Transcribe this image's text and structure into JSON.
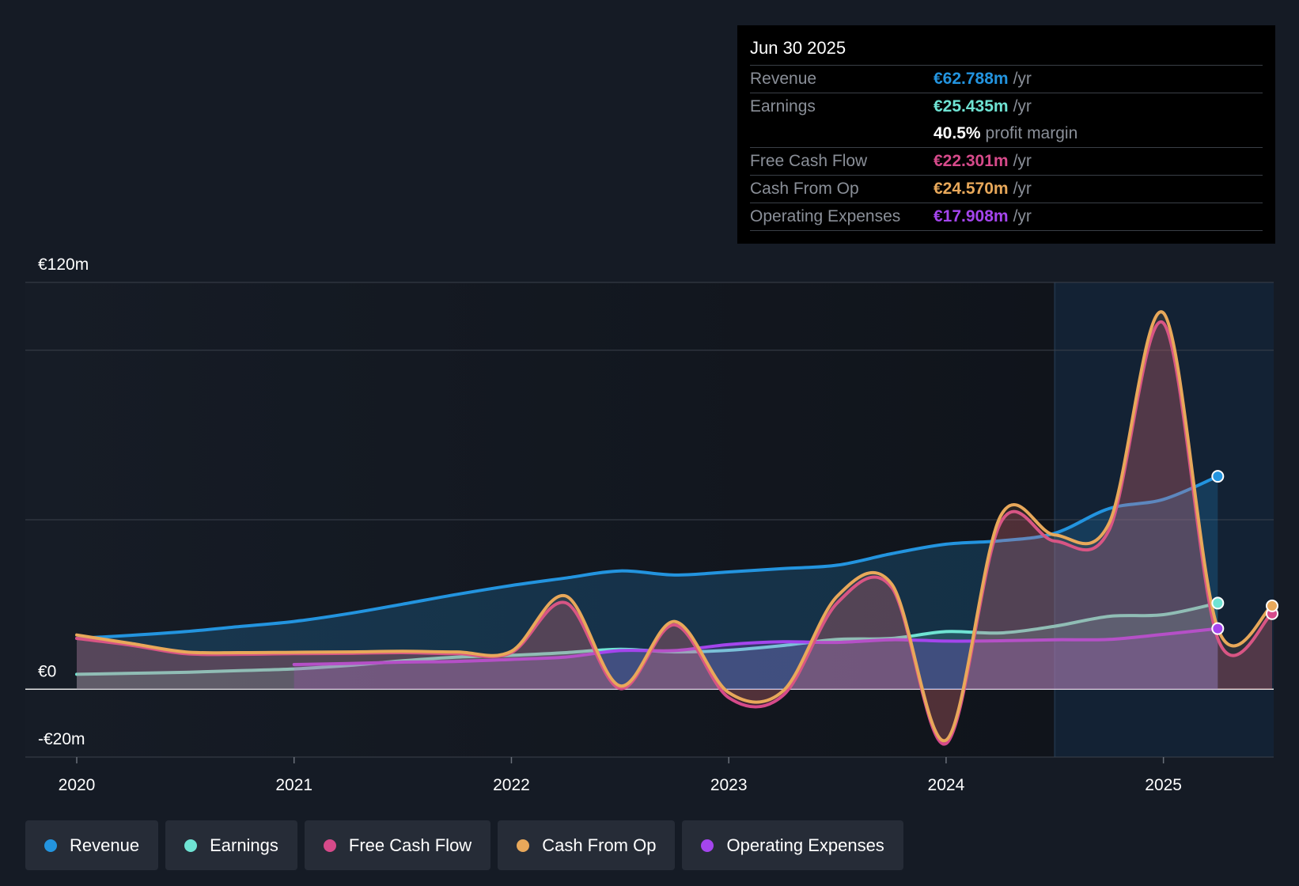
{
  "tooltip": {
    "date": "Jun 30 2025",
    "rows": [
      {
        "label": "Revenue",
        "value": "€62.788m",
        "unit": "/yr",
        "color": "#2394df"
      },
      {
        "label": "Earnings",
        "value": "€25.435m",
        "unit": "/yr",
        "color": "#6fe3d3"
      },
      {
        "label": "",
        "value": "40.5%",
        "unit": "profit margin",
        "color": "#ffffff"
      },
      {
        "label": "Free Cash Flow",
        "value": "€22.301m",
        "unit": "/yr",
        "color": "#d64a8a"
      },
      {
        "label": "Cash From Op",
        "value": "€24.570m",
        "unit": "/yr",
        "color": "#e8a85a"
      },
      {
        "label": "Operating Expenses",
        "value": "€17.908m",
        "unit": "/yr",
        "color": "#a445ed"
      }
    ]
  },
  "legend": [
    {
      "label": "Revenue",
      "color": "#2394df"
    },
    {
      "label": "Earnings",
      "color": "#6fe3d3"
    },
    {
      "label": "Free Cash Flow",
      "color": "#d64a8a"
    },
    {
      "label": "Cash From Op",
      "color": "#e8a85a"
    },
    {
      "label": "Operating Expenses",
      "color": "#a445ed"
    }
  ],
  "chart_data": {
    "type": "area",
    "title": "",
    "xlabel": "",
    "ylabel": "",
    "ylim": [
      -20,
      120
    ],
    "xlim": [
      2020,
      2025.5
    ],
    "x_ticks": [
      2020,
      2021,
      2022,
      2023,
      2024,
      2025
    ],
    "x_tick_labels": [
      "2020",
      "2021",
      "2022",
      "2023",
      "2024",
      "2025"
    ],
    "y_tick_labels": [
      {
        "value": 120,
        "label": "€120m"
      },
      {
        "value": 0,
        "label": "€0"
      },
      {
        "value": -20,
        "label": "-€20m"
      }
    ],
    "gridlines": [
      120,
      100,
      50,
      0,
      -20
    ],
    "forecast_start": 2024.5,
    "series": [
      {
        "name": "Revenue",
        "color": "#2394df",
        "start": 2020,
        "values": [
          15,
          15.9,
          17,
          18.5,
          20,
          22.3,
          25.1,
          28,
          30.6,
          32.8,
          34.9,
          33.7,
          34.6,
          35.6,
          36.6,
          40,
          42.8,
          43.8,
          46,
          53.3,
          56,
          62.8
        ]
      },
      {
        "name": "Earnings",
        "color": "#6fe3d3",
        "start": 2020,
        "values": [
          4.4,
          4.7,
          5,
          5.5,
          6,
          7,
          8.4,
          9.5,
          10,
          10.8,
          11.8,
          11,
          11.5,
          12.9,
          14.7,
          15,
          17,
          16.6,
          18.6,
          21.5,
          22,
          25.4
        ]
      },
      {
        "name": "Free Cash Flow",
        "color": "#d64a8a",
        "start": 2020,
        "values": [
          15,
          13,
          10.5,
          10.3,
          10.5,
          10.6,
          10.8,
          10.5,
          10.8,
          25.5,
          0.2,
          19,
          -2.5,
          -1.8,
          25.5,
          30,
          -16,
          49,
          43.7,
          47,
          108,
          15,
          22.3
        ]
      },
      {
        "name": "Cash From Op",
        "color": "#e8a85a",
        "start": 2020,
        "values": [
          16,
          13.5,
          11,
          10.8,
          10.9,
          11,
          11.2,
          11,
          11.2,
          27.5,
          1,
          20,
          -1,
          -0.5,
          27.5,
          31,
          -15,
          51,
          45.5,
          49,
          111,
          18,
          24.6
        ]
      },
      {
        "name": "Operating Expenses",
        "color": "#a445ed",
        "start": 2021,
        "values": [
          7.3,
          7.6,
          8,
          8.2,
          8.8,
          9.5,
          11.4,
          11.4,
          13.2,
          14,
          13.8,
          14.6,
          14.2,
          14.3,
          14.6,
          14.7,
          16.2,
          17.9
        ]
      }
    ],
    "x_step": 0.25
  }
}
